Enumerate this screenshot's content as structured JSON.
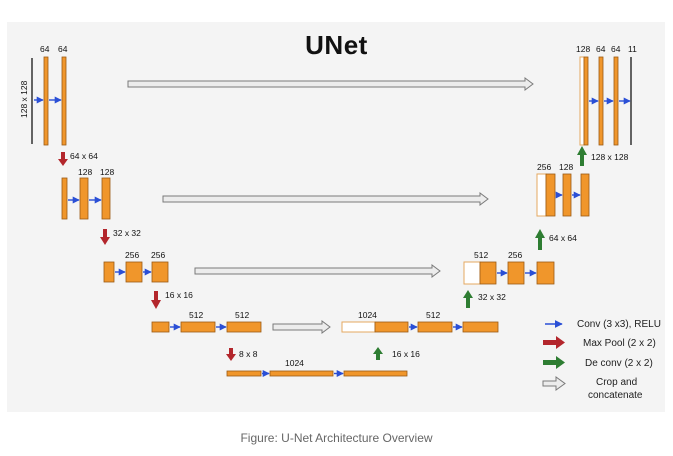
{
  "diagram": {
    "title": "UNet",
    "caption": "Figure: U-Net Architecture Overview",
    "encoder": {
      "level1": {
        "spatial": "128 x 128",
        "channels": [
          "64",
          "64"
        ]
      },
      "level2": {
        "pool": "64 x 64",
        "channels": [
          "128",
          "128"
        ]
      },
      "level3": {
        "pool": "32 x 32",
        "channels": [
          "256",
          "256"
        ]
      },
      "level4": {
        "pool": "16 x 16",
        "channels": [
          "512",
          "512"
        ]
      }
    },
    "bottleneck": {
      "pool": "8 x 8",
      "channels": [
        "1024"
      ]
    },
    "decoder": {
      "level4": {
        "upconv": "16 x 16",
        "channels": [
          "1024",
          "512"
        ]
      },
      "level3": {
        "upconv": "32 x 32",
        "channels": [
          "512",
          "256"
        ]
      },
      "level2": {
        "upconv": "64 x 64",
        "channels": [
          "256",
          "128"
        ]
      },
      "level1": {
        "upconv": "128 x 128",
        "channels": [
          "128",
          "64",
          "64",
          "11"
        ]
      }
    },
    "legend": {
      "conv": "Conv (3 x3), RELU",
      "maxpool": "Max Pool (2 x 2)",
      "deconv": "De conv (2 x 2)",
      "crop_line1": "Crop and",
      "crop_line2": "concatenate"
    },
    "colors": {
      "block_fill": "#f0962b",
      "block_stroke": "#9a5a14",
      "conv_arrow": "#2a4fd6",
      "maxpool_arrow": "#b3262c",
      "deconv_arrow": "#2e7d32",
      "skip_arrow_fill": "#ececec",
      "skip_arrow_stroke": "#7a7a7a"
    }
  }
}
